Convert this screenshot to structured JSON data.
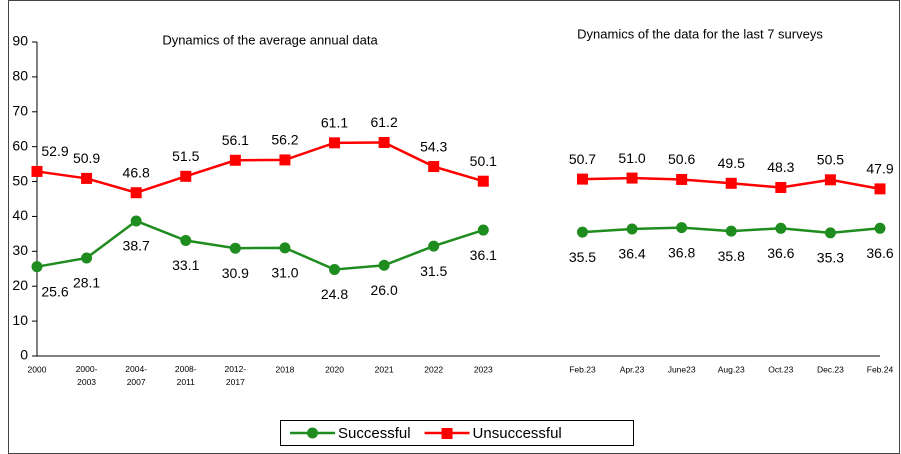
{
  "chart_data": {
    "type": "line",
    "annotations": [
      "Dynamics of the average annual data",
      "Dynamics of the data for the last 7 surveys"
    ],
    "categories": [
      "2000",
      "2000-2003",
      "2004-2007",
      "2008-2011",
      "2012-2017",
      "2018",
      "2020",
      "2021",
      "2022",
      "2023",
      null,
      "Feb.23",
      "Apr.23",
      "June23",
      "Aug.23",
      "Oct.23",
      "Dec.23",
      "Feb.24"
    ],
    "series": [
      {
        "name": "Successful",
        "color": "#1e8c1e",
        "marker": "circle",
        "values": [
          25.6,
          28.1,
          38.7,
          33.1,
          30.9,
          31.0,
          24.8,
          26.0,
          31.5,
          36.1,
          null,
          35.5,
          36.4,
          36.8,
          35.8,
          36.6,
          35.3,
          36.6
        ],
        "value_labels": [
          "25.6",
          "28.1",
          "38.7",
          "33.1",
          "30.9",
          "31.0",
          "24.8",
          "26.0",
          "31.5",
          "36.1",
          null,
          "35.5",
          "36.4",
          "36.8",
          "35.8",
          "36.6",
          "35.3",
          "36.6"
        ]
      },
      {
        "name": "Unsuccessful",
        "color": "#ff0000",
        "marker": "square",
        "values": [
          52.9,
          50.9,
          46.8,
          51.5,
          56.1,
          56.2,
          61.1,
          61.2,
          54.3,
          50.1,
          null,
          50.7,
          51.0,
          50.6,
          49.5,
          48.3,
          50.5,
          47.9
        ],
        "value_labels": [
          "52.9",
          "50.9",
          "46.8",
          "51.5",
          "56.1",
          "56.2",
          "61.1",
          "61.2",
          "54.3",
          "50.1",
          null,
          "50.7",
          "51.0",
          "50.6",
          "49.5",
          "48.3",
          "50.5",
          "47.9"
        ]
      }
    ],
    "ylim": [
      0,
      90
    ],
    "yticks": [
      0,
      10,
      20,
      30,
      40,
      50,
      60,
      70,
      80,
      90
    ],
    "grid": false,
    "legend": "bottom"
  }
}
